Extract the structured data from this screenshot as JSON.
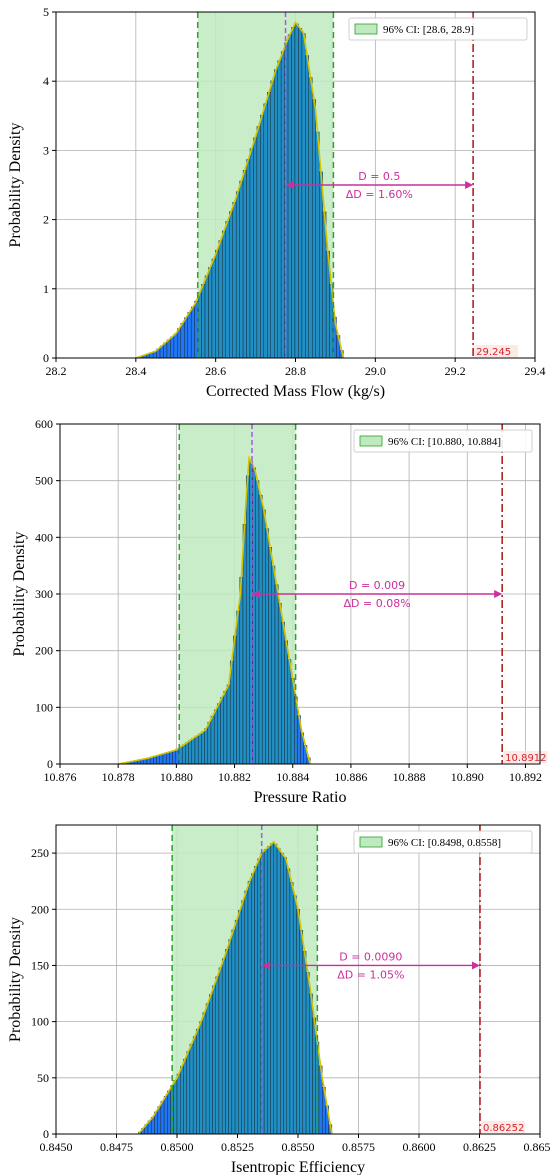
{
  "colors": {
    "bar_fill": "#1f8fc6",
    "bar_fill_edge_tail": "#1f77f4",
    "bar_edge": "#1a1a1a",
    "kde_line": "#d4c400",
    "ci_fill": "#bfeabf",
    "ci_line": "#2ca02c",
    "median_line": "#a259e6",
    "ref_line": "#b22222",
    "arrow": "#cc2e9c",
    "grid": "#b0b0b0"
  },
  "chart_data": [
    {
      "type": "bar",
      "xlabel": "Corrected Mass Flow (kg/s)",
      "ylabel": "Probability Density",
      "xlim": [
        28.2,
        29.4
      ],
      "ylim": [
        0,
        5
      ],
      "xticks": [
        "28.2",
        "28.4",
        "28.6",
        "28.8",
        "29.0",
        "29.2",
        "29.4"
      ],
      "yticks": [
        "0",
        "1",
        "2",
        "3",
        "4",
        "5"
      ],
      "grid": true,
      "legend_placement": "top-right",
      "legend_label": "96% CI: [28.6, 28.9]",
      "ci": [
        28.555,
        28.895
      ],
      "median": 28.775,
      "reference": 29.245,
      "reference_label": "29.245",
      "arrow_y": 2.5,
      "annotation_d": "D = 0.5",
      "annotation_dd": "ΔD = 1.60%",
      "density_curve": {
        "x": [
          28.4,
          28.45,
          28.5,
          28.55,
          28.6,
          28.65,
          28.7,
          28.75,
          28.78,
          28.8,
          28.82,
          28.85,
          28.88,
          28.9,
          28.92
        ],
        "y": [
          0.0,
          0.1,
          0.35,
          0.8,
          1.5,
          2.3,
          3.2,
          4.15,
          4.6,
          4.85,
          4.7,
          3.6,
          1.6,
          0.5,
          0.0
        ]
      }
    },
    {
      "type": "bar",
      "xlabel": "Pressure Ratio",
      "ylabel": "Probability Density",
      "xlim": [
        10.876,
        10.8925
      ],
      "ylim": [
        0,
        600
      ],
      "xticks": [
        "10.876",
        "10.878",
        "10.880",
        "10.882",
        "10.884",
        "10.886",
        "10.888",
        "10.890",
        "10.892"
      ],
      "yticks": [
        "0",
        "100",
        "200",
        "300",
        "400",
        "500",
        "600"
      ],
      "grid": true,
      "legend_placement": "top-right",
      "legend_label": "96% CI: [10.880, 10.884]",
      "ci": [
        10.8801,
        10.8841
      ],
      "median": 10.8826,
      "reference": 10.8912,
      "reference_label": "10.8912",
      "arrow_y": 300,
      "annotation_d": "D = 0.009",
      "annotation_dd": "ΔD = 0.08%",
      "density_curve": {
        "x": [
          10.878,
          10.879,
          10.88,
          10.881,
          10.8818,
          10.8822,
          10.8824,
          10.8825,
          10.8827,
          10.883,
          10.8835,
          10.884,
          10.8843,
          10.8846
        ],
        "y": [
          0,
          10,
          25,
          60,
          140,
          300,
          470,
          540,
          520,
          450,
          300,
          150,
          60,
          0
        ]
      }
    },
    {
      "type": "bar",
      "xlabel": "Isentropic Efficiency",
      "ylabel": "Probability Density",
      "xlim": [
        0.845,
        0.865
      ],
      "ylim": [
        0,
        275
      ],
      "xticks": [
        "0.8450",
        "0.8475",
        "0.8500",
        "0.8525",
        "0.8550",
        "0.8575",
        "0.8600",
        "0.8625",
        "0.8650"
      ],
      "yticks": [
        "0",
        "50",
        "100",
        "150",
        "200",
        "250"
      ],
      "grid": true,
      "legend_placement": "top-right",
      "legend_label": "96% CI: [0.8498, 0.8558]",
      "ci": [
        0.8498,
        0.8558
      ],
      "median": 0.8535,
      "reference": 0.86252,
      "reference_label": "0.86252",
      "arrow_y": 150,
      "annotation_d": "D = 0.0090",
      "annotation_dd": "ΔD = 1.05%",
      "density_curve": {
        "x": [
          0.8484,
          0.849,
          0.85,
          0.851,
          0.852,
          0.853,
          0.8535,
          0.854,
          0.8545,
          0.855,
          0.8555,
          0.856,
          0.8564
        ],
        "y": [
          0,
          15,
          50,
          100,
          160,
          225,
          250,
          260,
          245,
          200,
          130,
          50,
          0
        ]
      }
    }
  ]
}
